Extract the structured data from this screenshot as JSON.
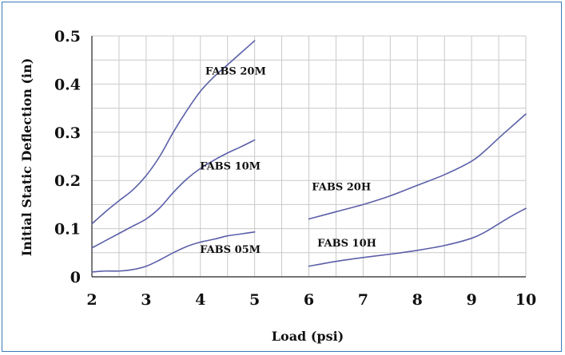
{
  "chart_data": {
    "type": "line",
    "xlabel": "Load (psi)",
    "ylabel": "Initial Static  Deflection (in)",
    "xlim": [
      2,
      10
    ],
    "ylim": [
      0,
      0.5
    ],
    "x_ticks": [
      "2",
      "3",
      "4",
      "5",
      "6",
      "7",
      "8",
      "9",
      "10"
    ],
    "y_ticks": [
      "0",
      "0.1",
      "0.2",
      "0.3",
      "0.4",
      "0.5"
    ],
    "grid": true,
    "line_color": "#5b5fa8",
    "series": [
      {
        "name": "FABS 20M",
        "label_at": [
          4.65,
          0.42
        ],
        "x": [
          2,
          2.25,
          2.5,
          2.75,
          3,
          3.25,
          3.5,
          3.75,
          4,
          4.25,
          4.5,
          4.75,
          5
        ],
        "y": [
          0.11,
          0.135,
          0.158,
          0.18,
          0.21,
          0.25,
          0.3,
          0.345,
          0.385,
          0.415,
          0.44,
          0.465,
          0.49
        ]
      },
      {
        "name": "FABS 10M",
        "label_at": [
          4.55,
          0.223
        ],
        "x": [
          2,
          2.25,
          2.5,
          2.75,
          3,
          3.25,
          3.5,
          3.75,
          4,
          4.25,
          4.5,
          4.75,
          5
        ],
        "y": [
          0.06,
          0.075,
          0.09,
          0.105,
          0.12,
          0.143,
          0.175,
          0.203,
          0.225,
          0.242,
          0.257,
          0.27,
          0.284
        ]
      },
      {
        "name": "FABS 05M",
        "label_at": [
          4.55,
          0.05
        ],
        "x": [
          2,
          2.25,
          2.5,
          2.75,
          3,
          3.25,
          3.5,
          3.75,
          4,
          4.25,
          4.5,
          4.75,
          5
        ],
        "y": [
          0.01,
          0.012,
          0.012,
          0.015,
          0.022,
          0.035,
          0.05,
          0.063,
          0.072,
          0.078,
          0.085,
          0.089,
          0.093
        ]
      },
      {
        "name": "FABS 20H",
        "label_at": [
          6.6,
          0.18
        ],
        "x": [
          6,
          6.5,
          7,
          7.5,
          8,
          8.5,
          9,
          9.25,
          9.5,
          9.75,
          10
        ],
        "y": [
          0.12,
          0.135,
          0.15,
          0.168,
          0.19,
          0.212,
          0.24,
          0.262,
          0.288,
          0.313,
          0.338
        ]
      },
      {
        "name": "FABS 10H",
        "label_at": [
          6.7,
          0.063
        ],
        "x": [
          6,
          6.5,
          7,
          7.5,
          8,
          8.5,
          9,
          9.25,
          9.5,
          9.75,
          10
        ],
        "y": [
          0.022,
          0.032,
          0.04,
          0.047,
          0.055,
          0.065,
          0.08,
          0.093,
          0.11,
          0.127,
          0.142
        ]
      }
    ]
  }
}
